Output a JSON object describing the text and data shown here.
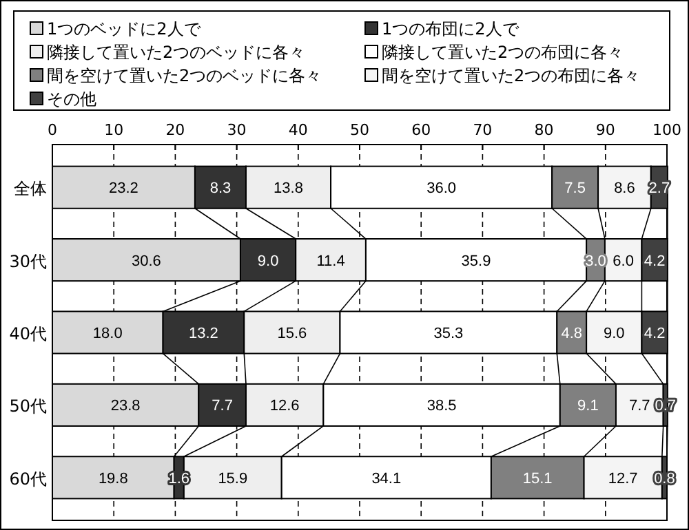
{
  "chart_data": {
    "type": "bar",
    "orientation": "horizontal",
    "stacked": true,
    "categories": [
      "全体",
      "30代",
      "40代",
      "50代",
      "60代"
    ],
    "series": [
      {
        "name": "1つのベッドに2人で",
        "color": "#d9d9d9",
        "values": [
          23.2,
          30.6,
          18.0,
          23.8,
          19.8
        ],
        "value_labels": [
          "23.2",
          "30.6",
          "18.0",
          "23.8",
          "19.8"
        ]
      },
      {
        "name": "1つの布団に2人で",
        "color": "#333333",
        "values": [
          8.3,
          9.0,
          13.2,
          7.7,
          1.6
        ],
        "value_labels": [
          "8.3",
          "9.0",
          "13.2",
          "7.7",
          "1.6"
        ]
      },
      {
        "name": "隣接して置いた2つのベッドに各々",
        "color": "#eeeeee",
        "values": [
          13.8,
          11.4,
          15.6,
          12.6,
          15.9
        ],
        "value_labels": [
          "13.8",
          "11.4",
          "15.6",
          "12.6",
          "15.9"
        ]
      },
      {
        "name": "隣接して置いた2つの布団に各々",
        "color": "#ffffff",
        "values": [
          36.0,
          35.9,
          35.3,
          38.5,
          34.1
        ],
        "value_labels": [
          "36.0",
          "35.9",
          "35.3",
          "38.5",
          "34.1"
        ]
      },
      {
        "name": "間を空けて置いた2つのベッドに各々",
        "color": "#808080",
        "values": [
          7.5,
          3.0,
          4.8,
          9.1,
          15.1
        ],
        "value_labels": [
          "7.5",
          "3.0",
          "4.8",
          "9.1",
          "15.1"
        ]
      },
      {
        "name": "間を空けて置いた2つの布団に各々",
        "color": "#f4f4f4",
        "values": [
          8.6,
          6.0,
          9.0,
          7.7,
          12.7
        ],
        "value_labels": [
          "8.6",
          "6.0",
          "9.0",
          "7.7",
          "12.7"
        ]
      },
      {
        "name": "その他",
        "color": "#404040",
        "values": [
          2.7,
          4.2,
          4.2,
          0.7,
          0.8
        ],
        "value_labels": [
          "2.7",
          "4.2",
          "4.2",
          "0.7",
          "0.8"
        ]
      }
    ],
    "xlim": [
      0,
      100
    ],
    "xticks": [
      0,
      10,
      20,
      30,
      40,
      50,
      60,
      70,
      80,
      90,
      100
    ],
    "grid": "x",
    "legend": "top"
  }
}
